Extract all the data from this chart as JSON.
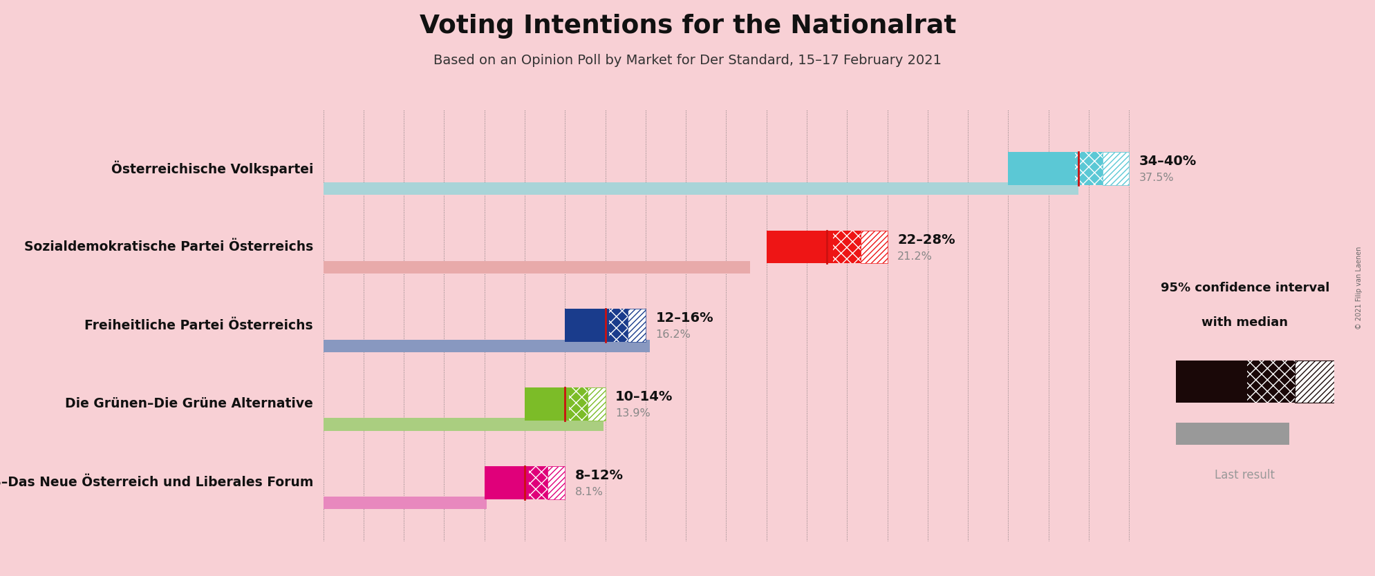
{
  "title": "Voting Intentions for the Nationalrat",
  "subtitle": "Based on an Opinion Poll by Market for Der Standard, 15–17 February 2021",
  "background_color": "#f8d0d5",
  "parties": [
    {
      "name": "Österreichische Volkspartei",
      "ci_low": 34,
      "ci_high": 40,
      "median": 37.5,
      "last_result": 37.5,
      "color": "#5bc8d5",
      "last_color": "#a8d4d8",
      "label": "34–40%",
      "sublabel": "37.5%"
    },
    {
      "name": "Sozialdemokratische Partei Österreichs",
      "ci_low": 22,
      "ci_high": 28,
      "median": 25,
      "last_result": 21.2,
      "color": "#ee1515",
      "last_color": "#e8aaaa",
      "label": "22–28%",
      "sublabel": "21.2%"
    },
    {
      "name": "Freiheitliche Partei Österreichs",
      "ci_low": 12,
      "ci_high": 16,
      "median": 14,
      "last_result": 16.2,
      "color": "#1a3c8c",
      "last_color": "#8898c0",
      "label": "12–16%",
      "sublabel": "16.2%"
    },
    {
      "name": "Die Grünen–Die Grüne Alternative",
      "ci_low": 10,
      "ci_high": 14,
      "median": 12,
      "last_result": 13.9,
      "color": "#7cbc28",
      "last_color": "#aace80",
      "label": "10–14%",
      "sublabel": "13.9%"
    },
    {
      "name": "NEOS–Das Neue Österreich und Liberales Forum",
      "ci_low": 8,
      "ci_high": 12,
      "median": 10,
      "last_result": 8.1,
      "color": "#e0007a",
      "last_color": "#e888be",
      "label": "8–12%",
      "sublabel": "8.1%"
    }
  ],
  "x_max": 42,
  "bar_height": 0.42,
  "last_bar_height": 0.16,
  "median_line_color": "#cc1111",
  "copyright_text": "© 2021 Filip van Laenen",
  "legend_color": "#1a0808"
}
